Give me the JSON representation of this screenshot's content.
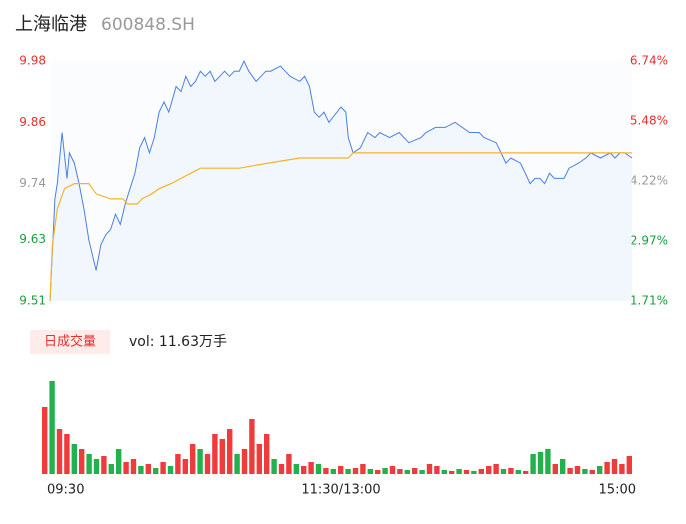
{
  "header": {
    "name": "上海临港",
    "code": "600848.SH"
  },
  "chart_data": {
    "type": "intraday",
    "xlim": [
      0,
      240
    ],
    "xticks": [
      {
        "value": 0,
        "label": "09:30"
      },
      {
        "value": 120,
        "label": "11:30/13:00"
      },
      {
        "value": 240,
        "label": "15:00"
      }
    ],
    "ylim": [
      9.51,
      9.98
    ],
    "yticks": [
      9.51,
      9.63,
      9.74,
      9.86,
      9.98
    ],
    "ytick_colors": [
      "#1a9e3a",
      "#1a9e3a",
      "#999999",
      "#e83030",
      "#e83030"
    ],
    "y2lim": [
      1.71,
      6.74
    ],
    "y2ticks": [
      {
        "value": 1.71,
        "label": "1.71%"
      },
      {
        "value": 2.97,
        "label": "2.97%"
      },
      {
        "value": 4.22,
        "label": "4.22%"
      },
      {
        "value": 5.48,
        "label": "5.48%"
      },
      {
        "value": 6.74,
        "label": "6.74%"
      }
    ],
    "price": {
      "color": "#4a7fe3",
      "x": [
        0,
        2,
        3,
        5,
        7,
        8,
        10,
        12,
        14,
        16,
        19,
        21,
        23,
        25,
        27,
        29,
        31,
        33,
        35,
        37,
        39,
        41,
        43,
        45,
        47,
        49,
        52,
        54,
        56,
        58,
        60,
        62,
        64,
        66,
        68,
        70,
        72,
        74,
        76,
        78,
        80,
        82,
        85,
        87,
        89,
        91,
        95,
        97,
        99,
        103,
        105,
        107,
        109,
        111,
        113,
        115,
        120,
        122,
        123,
        125,
        128,
        131,
        134,
        136,
        140,
        144,
        148,
        153,
        155,
        159,
        163,
        167,
        170,
        173,
        177,
        179,
        184,
        186,
        188,
        190,
        194,
        196,
        198,
        200,
        202,
        204,
        206,
        208,
        212,
        214,
        218,
        221,
        223,
        227,
        231,
        233,
        235,
        237,
        240
      ],
      "values": [
        9.51,
        9.71,
        9.74,
        9.84,
        9.75,
        9.8,
        9.78,
        9.74,
        9.69,
        9.63,
        9.57,
        9.62,
        9.64,
        9.65,
        9.68,
        9.66,
        9.7,
        9.73,
        9.76,
        9.81,
        9.83,
        9.8,
        9.83,
        9.88,
        9.9,
        9.88,
        9.93,
        9.92,
        9.95,
        9.93,
        9.94,
        9.96,
        9.95,
        9.96,
        9.94,
        9.95,
        9.96,
        9.95,
        9.96,
        9.96,
        9.98,
        9.96,
        9.94,
        9.95,
        9.96,
        9.96,
        9.97,
        9.96,
        9.95,
        9.94,
        9.95,
        9.93,
        9.88,
        9.87,
        9.88,
        9.86,
        9.89,
        9.88,
        9.83,
        9.8,
        9.81,
        9.84,
        9.83,
        9.84,
        9.83,
        9.84,
        9.82,
        9.83,
        9.84,
        9.85,
        9.85,
        9.86,
        9.85,
        9.84,
        9.84,
        9.83,
        9.82,
        9.8,
        9.78,
        9.79,
        9.78,
        9.76,
        9.74,
        9.75,
        9.75,
        9.74,
        9.76,
        9.75,
        9.75,
        9.77,
        9.78,
        9.79,
        9.8,
        9.79,
        9.8,
        9.79,
        9.8,
        9.8,
        9.79
      ]
    },
    "average": {
      "color": "#f2b52a",
      "x": [
        0,
        1,
        3,
        6,
        10,
        16,
        19,
        25,
        30,
        32,
        36,
        38,
        42,
        45,
        50,
        54,
        58,
        62,
        78,
        90,
        103,
        123,
        125,
        240
      ],
      "values": [
        9.51,
        9.62,
        9.69,
        9.73,
        9.74,
        9.74,
        9.72,
        9.71,
        9.71,
        9.7,
        9.7,
        9.71,
        9.72,
        9.73,
        9.74,
        9.75,
        9.76,
        9.77,
        9.77,
        9.78,
        9.79,
        9.79,
        9.8,
        9.8
      ]
    },
    "volume": {
      "label": "日成交量",
      "summary": "vol: 11.63万手",
      "up_color": "#ee3b3b",
      "down_color": "#22b14c",
      "values": [
        67,
        93,
        45,
        40,
        30,
        25,
        20,
        15,
        18,
        10,
        25,
        12,
        15,
        8,
        10,
        6,
        12,
        8,
        20,
        15,
        30,
        25,
        20,
        40,
        35,
        45,
        20,
        25,
        55,
        30,
        40,
        15,
        10,
        20,
        10,
        8,
        12,
        10,
        6,
        5,
        8,
        5,
        6,
        10,
        5,
        4,
        6,
        8,
        5,
        4,
        6,
        4,
        10,
        8,
        4,
        3,
        5,
        4,
        3,
        5,
        8,
        10,
        5,
        6,
        4,
        3,
        20,
        22,
        25,
        10,
        15,
        6,
        8,
        5,
        4,
        8,
        12,
        15,
        10,
        18
      ],
      "directions": [
        "up",
        "down",
        "up",
        "up",
        "down",
        "up",
        "down",
        "down",
        "up",
        "down",
        "down",
        "up",
        "up",
        "down",
        "up",
        "down",
        "up",
        "down",
        "up",
        "up",
        "up",
        "down",
        "up",
        "up",
        "up",
        "up",
        "down",
        "up",
        "up",
        "up",
        "up",
        "down",
        "up",
        "up",
        "down",
        "up",
        "up",
        "down",
        "up",
        "down",
        "up",
        "down",
        "up",
        "up",
        "down",
        "up",
        "down",
        "up",
        "up",
        "down",
        "up",
        "down",
        "up",
        "up",
        "down",
        "up",
        "down",
        "up",
        "down",
        "up",
        "up",
        "up",
        "down",
        "up",
        "down",
        "up",
        "down",
        "down",
        "down",
        "up",
        "down",
        "up",
        "up",
        "down",
        "up",
        "down",
        "up",
        "up",
        "up",
        "up"
      ]
    }
  }
}
